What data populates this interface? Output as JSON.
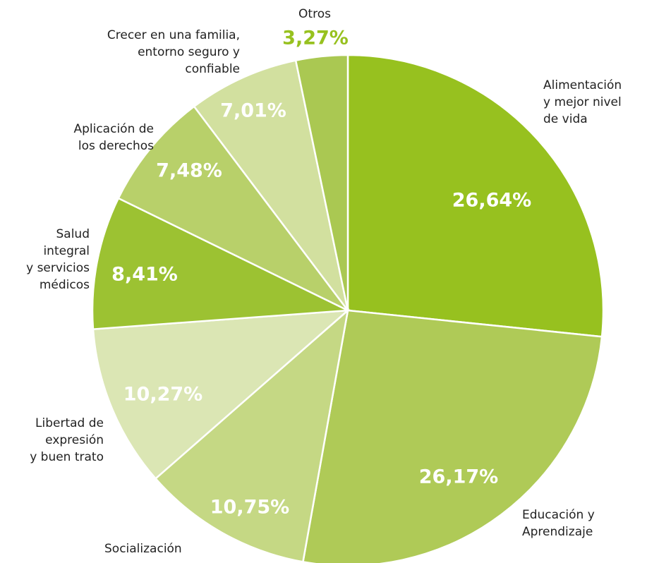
{
  "chart_data": {
    "type": "pie",
    "categories": [
      [
        "Alimentación",
        "y mejor nivel",
        "de vida"
      ],
      [
        "Educación y",
        "Aprendizaje"
      ],
      [
        "Socialización"
      ],
      [
        "Libertad de",
        "expresión",
        "y buen trato"
      ],
      [
        "Salud",
        "integral",
        "y servicios",
        "médicos"
      ],
      [
        "Aplicación de",
        "los derechos"
      ],
      [
        "Crecer en una familia,",
        "entorno seguro y",
        "confiable"
      ],
      [
        "Otros"
      ]
    ],
    "values": [
      26.64,
      26.17,
      10.75,
      10.27,
      8.41,
      7.48,
      7.01,
      3.27
    ],
    "value_labels": [
      "26,64%",
      "26,17%",
      "10,75%",
      "10,27%",
      "8,41%",
      "7,48%",
      "7,01%",
      "3,27%"
    ],
    "colors": [
      "#97c11f",
      "#afca57",
      "#c5d884",
      "#dbe6b4",
      "#9cc232",
      "#b8d06a",
      "#d2e09f",
      "#aac852"
    ]
  }
}
